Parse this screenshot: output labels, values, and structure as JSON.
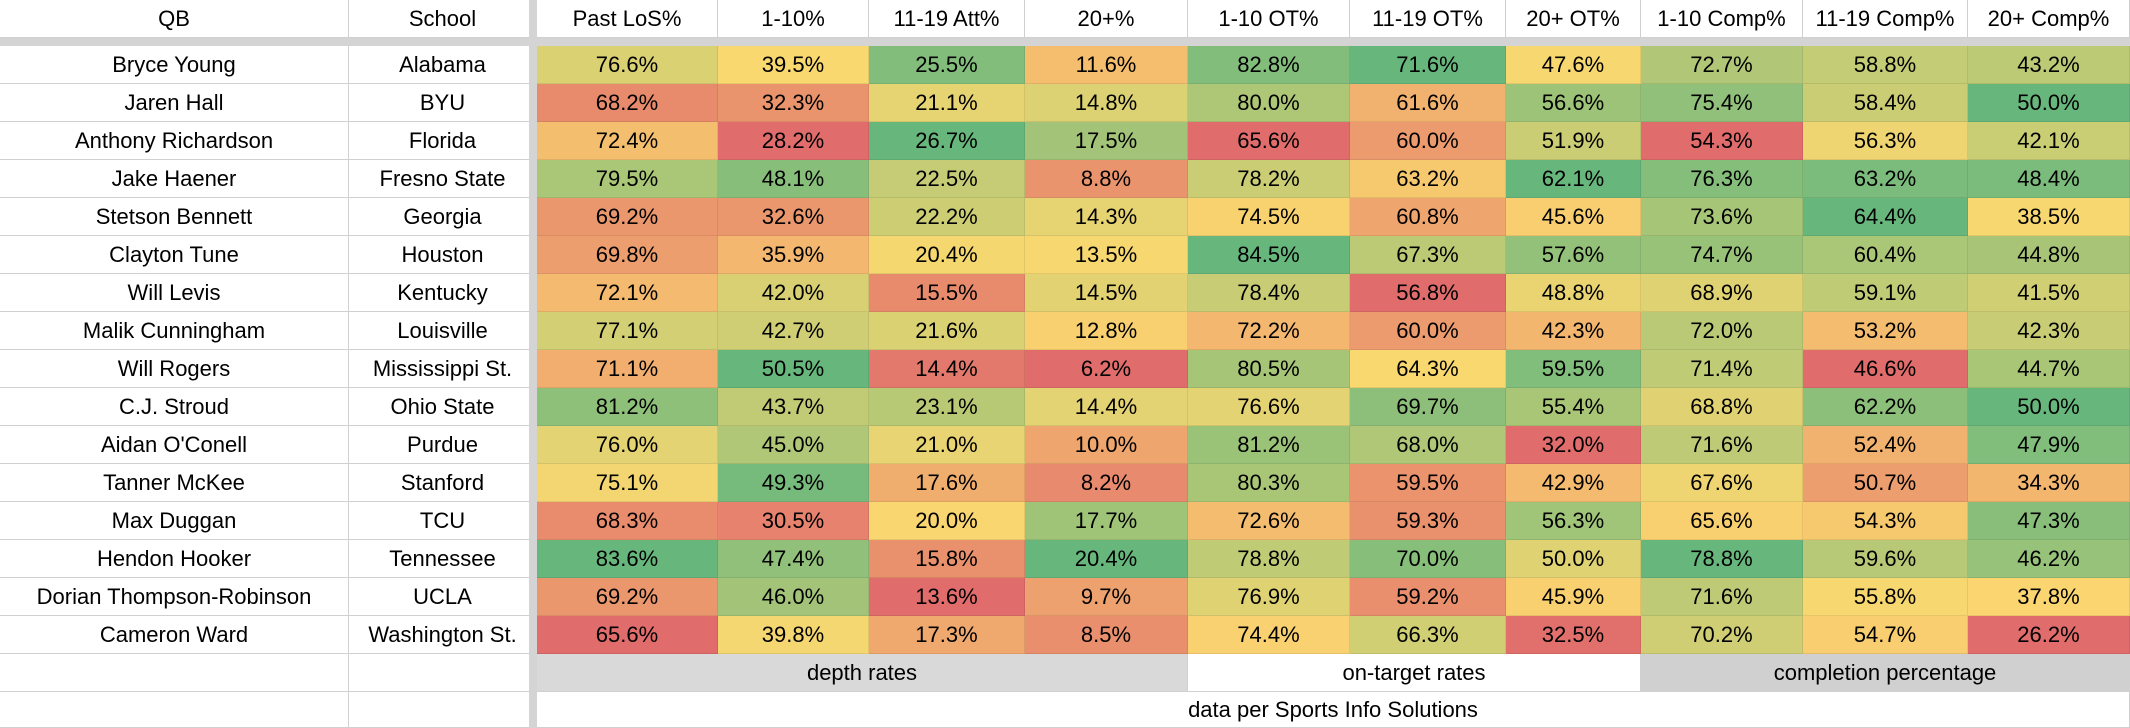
{
  "table": {
    "headers": [
      "QB",
      "School",
      "Past LoS%",
      "1-10%",
      "11-19 Att%",
      "20+%",
      "1-10 OT%",
      "11-19 OT%",
      "20+ OT%",
      "1-10 Comp%",
      "11-19 Comp%",
      "20+ Comp%"
    ],
    "rows": [
      {
        "qb": "Bryce Young",
        "school": "Alabama",
        "values": [
          "76.6%",
          "39.5%",
          "25.5%",
          "11.6%",
          "82.8%",
          "71.6%",
          "47.6%",
          "72.7%",
          "58.8%",
          "43.2%"
        ]
      },
      {
        "qb": "Jaren Hall",
        "school": "BYU",
        "values": [
          "68.2%",
          "32.3%",
          "21.1%",
          "14.8%",
          "80.0%",
          "61.6%",
          "56.6%",
          "75.4%",
          "58.4%",
          "50.0%"
        ]
      },
      {
        "qb": "Anthony Richardson",
        "school": "Florida",
        "values": [
          "72.4%",
          "28.2%",
          "26.7%",
          "17.5%",
          "65.6%",
          "60.0%",
          "51.9%",
          "54.3%",
          "56.3%",
          "42.1%"
        ]
      },
      {
        "qb": "Jake Haener",
        "school": "Fresno State",
        "values": [
          "79.5%",
          "48.1%",
          "22.5%",
          "8.8%",
          "78.2%",
          "63.2%",
          "62.1%",
          "76.3%",
          "63.2%",
          "48.4%"
        ]
      },
      {
        "qb": "Stetson Bennett",
        "school": "Georgia",
        "values": [
          "69.2%",
          "32.6%",
          "22.2%",
          "14.3%",
          "74.5%",
          "60.8%",
          "45.6%",
          "73.6%",
          "64.4%",
          "38.5%"
        ]
      },
      {
        "qb": "Clayton Tune",
        "school": "Houston",
        "values": [
          "69.8%",
          "35.9%",
          "20.4%",
          "13.5%",
          "84.5%",
          "67.3%",
          "57.6%",
          "74.7%",
          "60.4%",
          "44.8%"
        ]
      },
      {
        "qb": "Will Levis",
        "school": "Kentucky",
        "values": [
          "72.1%",
          "42.0%",
          "15.5%",
          "14.5%",
          "78.4%",
          "56.8%",
          "48.8%",
          "68.9%",
          "59.1%",
          "41.5%"
        ]
      },
      {
        "qb": "Malik Cunningham",
        "school": "Louisville",
        "values": [
          "77.1%",
          "42.7%",
          "21.6%",
          "12.8%",
          "72.2%",
          "60.0%",
          "42.3%",
          "72.0%",
          "53.2%",
          "42.3%"
        ]
      },
      {
        "qb": "Will Rogers",
        "school": "Mississippi St.",
        "values": [
          "71.1%",
          "50.5%",
          "14.4%",
          "6.2%",
          "80.5%",
          "64.3%",
          "59.5%",
          "71.4%",
          "46.6%",
          "44.7%"
        ]
      },
      {
        "qb": "C.J. Stroud",
        "school": "Ohio State",
        "values": [
          "81.2%",
          "43.7%",
          "23.1%",
          "14.4%",
          "76.6%",
          "69.7%",
          "55.4%",
          "68.8%",
          "62.2%",
          "50.0%"
        ]
      },
      {
        "qb": "Aidan O'Conell",
        "school": "Purdue",
        "values": [
          "76.0%",
          "45.0%",
          "21.0%",
          "10.0%",
          "81.2%",
          "68.0%",
          "32.0%",
          "71.6%",
          "52.4%",
          "47.9%"
        ]
      },
      {
        "qb": "Tanner McKee",
        "school": "Stanford",
        "values": [
          "75.1%",
          "49.3%",
          "17.6%",
          "8.2%",
          "80.3%",
          "59.5%",
          "42.9%",
          "67.6%",
          "50.7%",
          "34.3%"
        ]
      },
      {
        "qb": "Max Duggan",
        "school": "TCU",
        "values": [
          "68.3%",
          "30.5%",
          "20.0%",
          "17.7%",
          "72.6%",
          "59.3%",
          "56.3%",
          "65.6%",
          "54.3%",
          "47.3%"
        ]
      },
      {
        "qb": "Hendon Hooker",
        "school": "Tennessee",
        "values": [
          "83.6%",
          "47.4%",
          "15.8%",
          "20.4%",
          "78.8%",
          "70.0%",
          "50.0%",
          "78.8%",
          "59.6%",
          "46.2%"
        ]
      },
      {
        "qb": "Dorian Thompson-Robinson",
        "school": "UCLA",
        "values": [
          "69.2%",
          "46.0%",
          "13.6%",
          "9.7%",
          "76.9%",
          "59.2%",
          "45.9%",
          "71.6%",
          "55.8%",
          "37.8%"
        ]
      },
      {
        "qb": "Cameron Ward",
        "school": "Washington St.",
        "values": [
          "65.6%",
          "39.8%",
          "17.3%",
          "8.5%",
          "74.4%",
          "66.3%",
          "32.5%",
          "70.2%",
          "54.7%",
          "26.2%"
        ]
      }
    ],
    "groups": [
      {
        "label": "depth rates",
        "fill": "#d9d9d9"
      },
      {
        "label": "on-target rates",
        "fill": "#ffffff"
      },
      {
        "label": "completion percentage",
        "fill": "#d0d0d0"
      }
    ],
    "source": "data per Sports Info Solutions"
  },
  "colors": {
    "low": "#e06c6c",
    "mid": "#fbd870",
    "high": "#67b77d",
    "grid": "#d0d0d0",
    "freeze": "#d4d4d4"
  },
  "chart_data": {
    "type": "table",
    "title": "",
    "columns": [
      "QB",
      "School",
      "Past LoS%",
      "1-10%",
      "11-19 Att%",
      "20+%",
      "1-10 OT%",
      "11-19 OT%",
      "20+ OT%",
      "1-10 Comp%",
      "11-19 Comp%",
      "20+ Comp%"
    ],
    "column_groups": [
      {
        "label": "depth rates",
        "columns": [
          "Past LoS%",
          "1-10%",
          "11-19 Att%",
          "20+%"
        ]
      },
      {
        "label": "on-target rates",
        "columns": [
          "1-10 OT%",
          "11-19 OT%",
          "20+ OT%"
        ]
      },
      {
        "label": "completion percentage",
        "columns": [
          "1-10 Comp%",
          "11-19 Comp%",
          "20+ Comp%"
        ]
      }
    ],
    "color_scale": "red-yellow-green per column (low to high)",
    "source_note": "data per Sports Info Solutions"
  }
}
